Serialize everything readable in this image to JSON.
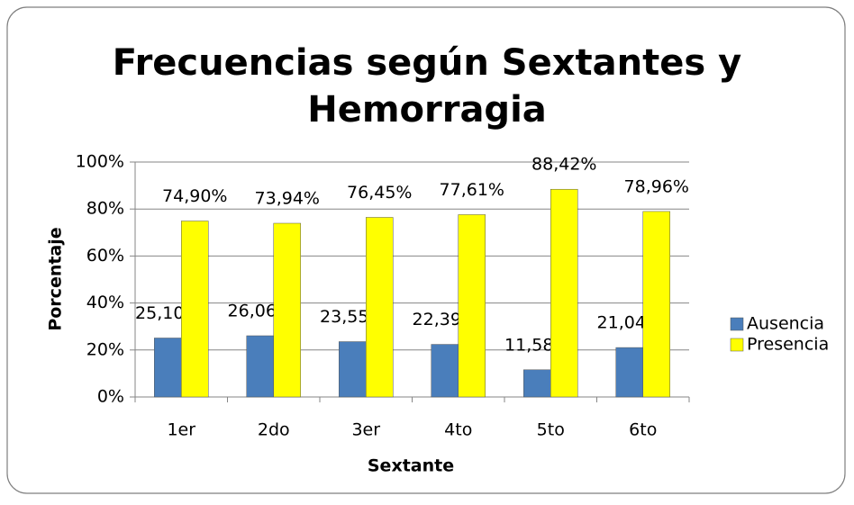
{
  "chart_data": {
    "type": "bar",
    "title": "Frecuencias según Sextantes y",
    "title_line2": "Hemorragia",
    "x_label": "Sextante",
    "y_label": "Porcentaje",
    "categories": [
      "1er",
      "2do",
      "3er",
      "4to",
      "5to",
      "6to"
    ],
    "series": [
      {
        "name": "Ausencia",
        "color": "#4a7ebb",
        "values": [
          25.1,
          26.06,
          23.55,
          22.39,
          11.58,
          21.04
        ],
        "value_labels": [
          "25,10%",
          "26,06%",
          "23,55%",
          "22,39%",
          "11,58%",
          "21,04%"
        ]
      },
      {
        "name": "Presencia",
        "color": "#ffff00",
        "values": [
          74.9,
          73.94,
          76.45,
          77.61,
          88.42,
          78.96
        ],
        "value_labels": [
          "74,90%",
          "73,94%",
          "76,45%",
          "77,61%",
          "88,42%",
          "78,96%"
        ]
      }
    ],
    "ylim": [
      0,
      100
    ],
    "yticks": [
      {
        "value": 0,
        "label": "0%"
      },
      {
        "value": 20,
        "label": "20%"
      },
      {
        "value": 40,
        "label": "40%"
      },
      {
        "value": 60,
        "label": "60%"
      },
      {
        "value": 80,
        "label": "80%"
      },
      {
        "value": 100,
        "label": "100%"
      }
    ],
    "grid": true,
    "legend": "right"
  }
}
